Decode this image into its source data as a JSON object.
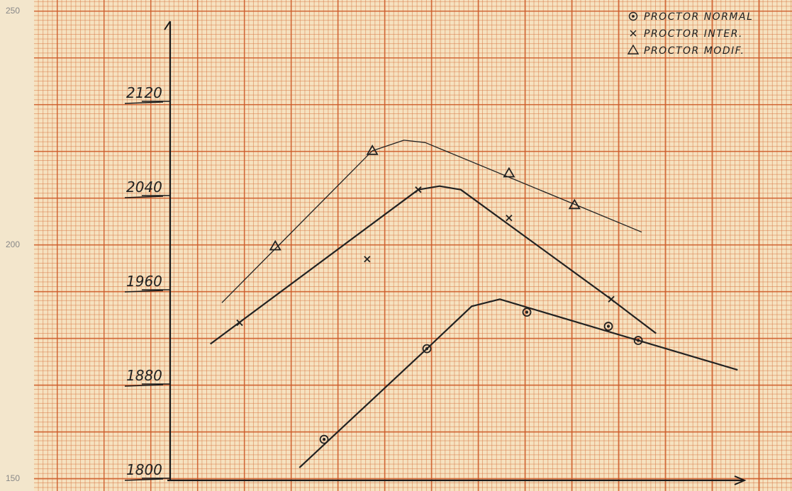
{
  "chart_data": {
    "type": "scatter",
    "ylim": [
      1800,
      2197
    ],
    "yticks": [
      1800,
      1880,
      1960,
      2040,
      2120
    ],
    "y2lim": [
      150,
      250
    ],
    "y2ticks": [
      150,
      200,
      250
    ],
    "xlim": [
      0,
      100
    ],
    "series": [
      {
        "name": "PROCTOR NORMAL",
        "marker": "circle",
        "color": "#222222",
        "x": [
          26.8,
          44.7,
          62.1,
          76.3,
          81.5
        ],
        "values": [
          1833,
          1910,
          1941,
          1929,
          1917
        ],
        "curve_x": [
          22.5,
          44.7,
          52.5,
          57.4,
          81.5,
          98.8
        ],
        "curve_values": [
          1809,
          1910,
          1946,
          1952,
          1917,
          1892
        ]
      },
      {
        "name": "PROCTOR INTER.",
        "marker": "cross",
        "color": "#222222",
        "x": [
          12.1,
          34.3,
          43.2,
          59.0,
          76.8
        ],
        "values": [
          1932,
          1986,
          2045,
          2021,
          1952
        ],
        "curve_x": [
          7.0,
          43.2,
          46.9,
          50.6,
          76.5,
          84.6
        ],
        "curve_values": [
          1914,
          2045,
          2048,
          2045,
          1953,
          1923
        ]
      },
      {
        "name": "PROCTOR MODIF.",
        "marker": "triangle",
        "color": "#222222",
        "x": [
          18.3,
          35.2,
          59.0,
          70.4
        ],
        "values": [
          1997,
          2078,
          2059,
          2032
        ],
        "curve_x": [
          9.0,
          35.2,
          40.7,
          44.4,
          82.1
        ],
        "curve_values": [
          1949,
          2078,
          2087,
          2085,
          2009
        ]
      }
    ]
  }
}
